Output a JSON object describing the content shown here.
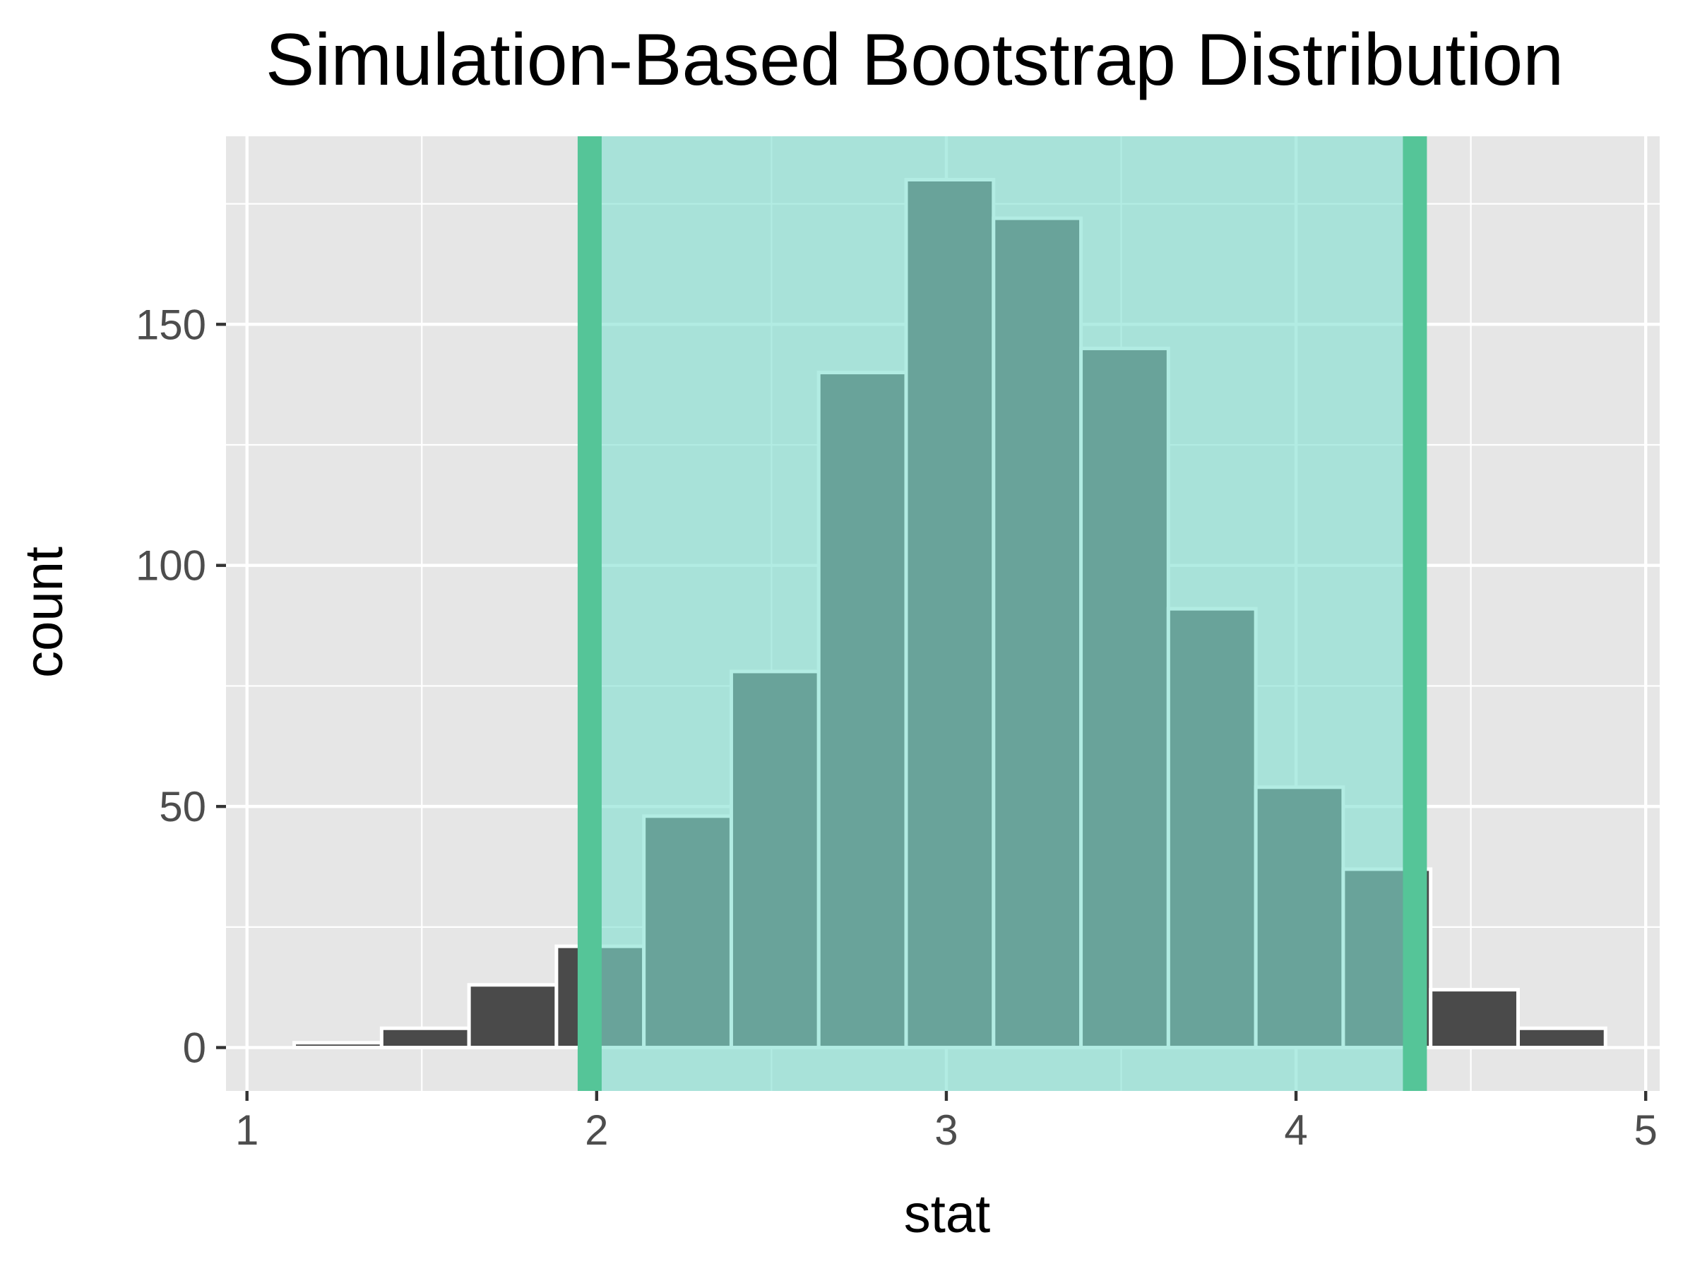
{
  "chart_data": {
    "type": "bar",
    "title": "Simulation-Based Bootstrap Distribution",
    "xlabel": "stat",
    "ylabel": "count",
    "xlim": [
      0.94,
      5.04
    ],
    "ylim": [
      -9,
      189
    ],
    "x_ticks": [
      1,
      2,
      3,
      4,
      5
    ],
    "y_ticks": [
      0,
      50,
      100,
      150
    ],
    "x_tick_labels": [
      "1",
      "2",
      "3",
      "4",
      "5"
    ],
    "y_tick_labels": [
      "0",
      "50",
      "100",
      "150"
    ],
    "grid": true,
    "bin_width": 0.25,
    "bins": [
      {
        "x": 1.26,
        "count": 1
      },
      {
        "x": 1.51,
        "count": 4
      },
      {
        "x": 1.76,
        "count": 13
      },
      {
        "x": 2.01,
        "count": 21
      },
      {
        "x": 2.26,
        "count": 48
      },
      {
        "x": 2.51,
        "count": 78
      },
      {
        "x": 2.76,
        "count": 140
      },
      {
        "x": 3.01,
        "count": 180
      },
      {
        "x": 3.26,
        "count": 172
      },
      {
        "x": 3.51,
        "count": 145
      },
      {
        "x": 3.76,
        "count": 91
      },
      {
        "x": 4.01,
        "count": 54
      },
      {
        "x": 4.26,
        "count": 37
      },
      {
        "x": 4.51,
        "count": 12
      },
      {
        "x": 4.76,
        "count": 4
      }
    ],
    "confidence_interval": {
      "lower": 1.98,
      "upper": 4.34
    },
    "colors": {
      "bar_fill": "#4a4a4a",
      "bar_outline": "#ffffff",
      "shade_fill": "#7ee0d0",
      "shade_line": "#55c598",
      "panel_background": "#e6e6e6",
      "grid": "#ffffff"
    }
  }
}
